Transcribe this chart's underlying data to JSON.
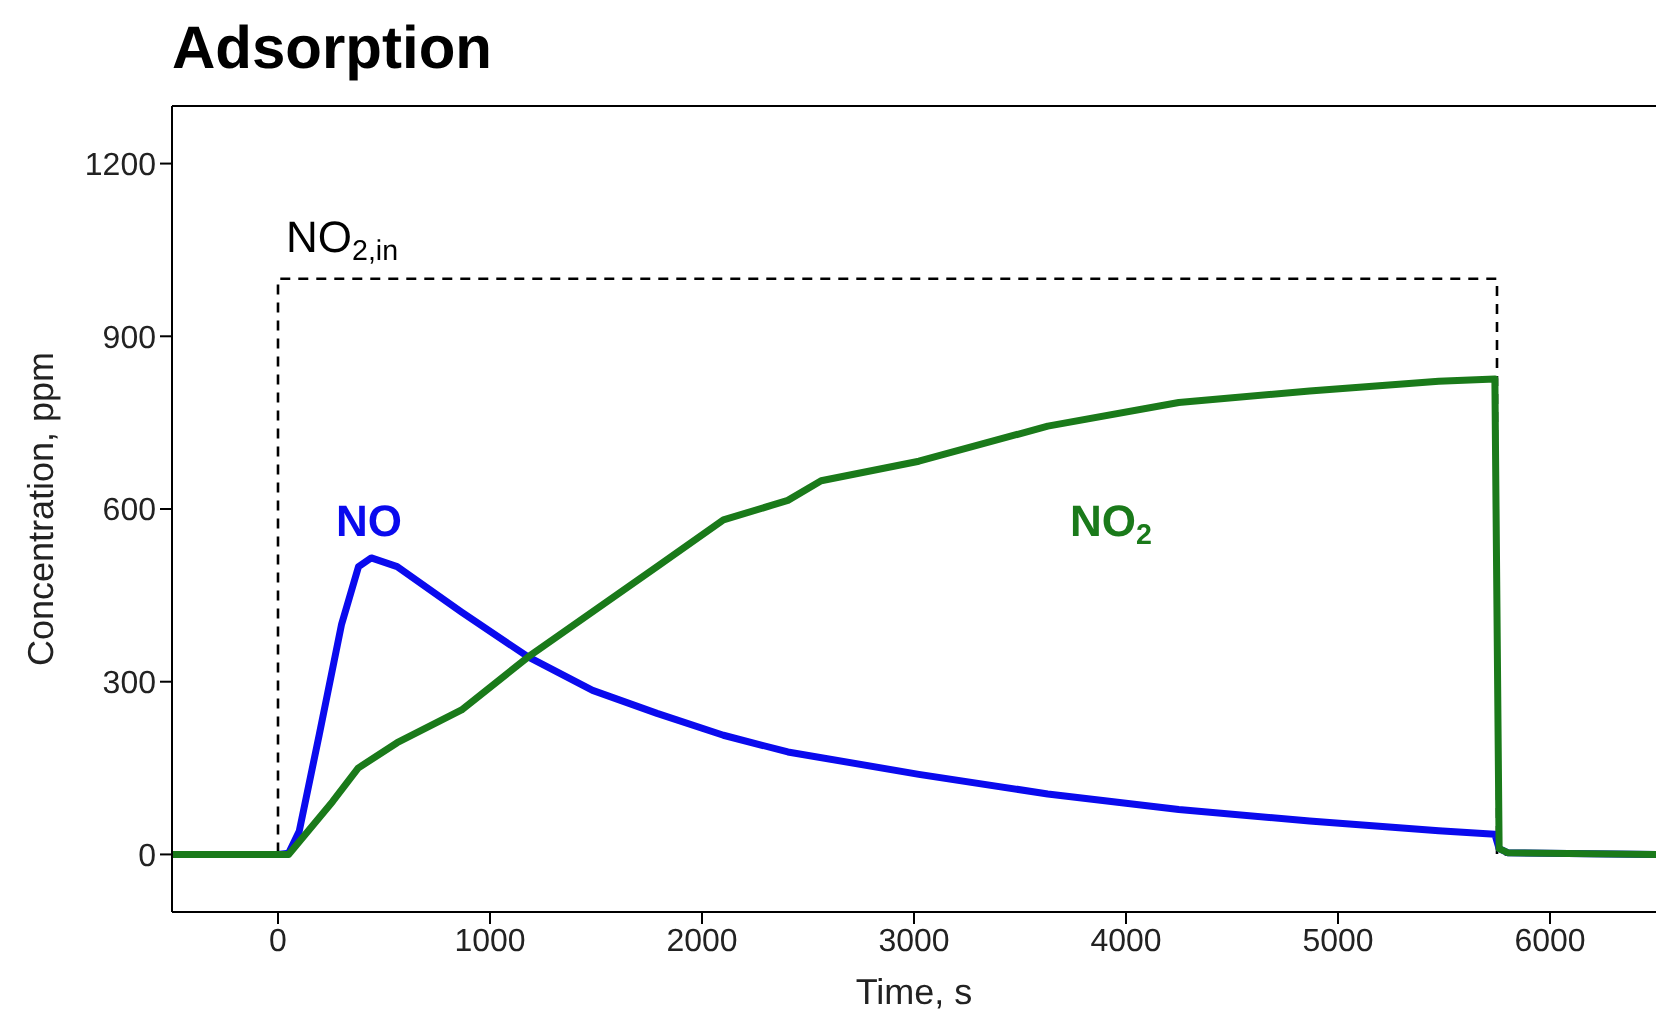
{
  "chart_data": {
    "type": "line",
    "title": "Adsorption",
    "xlabel": "Time, s",
    "ylabel": "Concentration, ppm",
    "xlim": [
      -500,
      6500
    ],
    "xticks": [
      0,
      1000,
      2000,
      3000,
      4000,
      5000,
      6000
    ],
    "ylim": [
      -100,
      1300
    ],
    "yticks": [
      0,
      300,
      600,
      900,
      1200
    ],
    "marker": "none",
    "series": [
      {
        "name": "NO$_{2,in}$",
        "color": "#000000",
        "line_style": "dashed",
        "x": [
          -500,
          0,
          0,
          5750,
          5750,
          6500
        ],
        "values": [
          0,
          0,
          1000,
          1000,
          0,
          0
        ]
      },
      {
        "name": "NO",
        "color": "#0a0aee",
        "line_style": "solid",
        "x": [
          -500,
          0,
          50,
          100,
          194,
          300,
          380,
          440,
          562,
          866,
          1180,
          1484,
          1788,
          2101,
          2405,
          3023,
          3631,
          4249,
          4866,
          5475,
          5740,
          5760,
          5800,
          6500
        ],
        "values": [
          0,
          0,
          2,
          40,
          207,
          400,
          500,
          515,
          500,
          421,
          343,
          285,
          245,
          207,
          178,
          139,
          105,
          78,
          58,
          41,
          35,
          10,
          3,
          0
        ]
      },
      {
        "name": "NO$_{2}$",
        "color": "#1a7a1a",
        "line_style": "solid",
        "x": [
          -500,
          0,
          50,
          258,
          378,
          562,
          866,
          1180,
          1788,
          2101,
          2405,
          2562,
          3023,
          3631,
          4249,
          4866,
          5475,
          5740,
          5760,
          5800,
          6500
        ],
        "values": [
          0,
          0,
          0,
          92,
          150,
          194,
          251,
          343,
          500,
          581,
          615,
          649,
          683,
          744,
          785,
          805,
          822,
          826,
          10,
          3,
          0
        ]
      }
    ]
  }
}
